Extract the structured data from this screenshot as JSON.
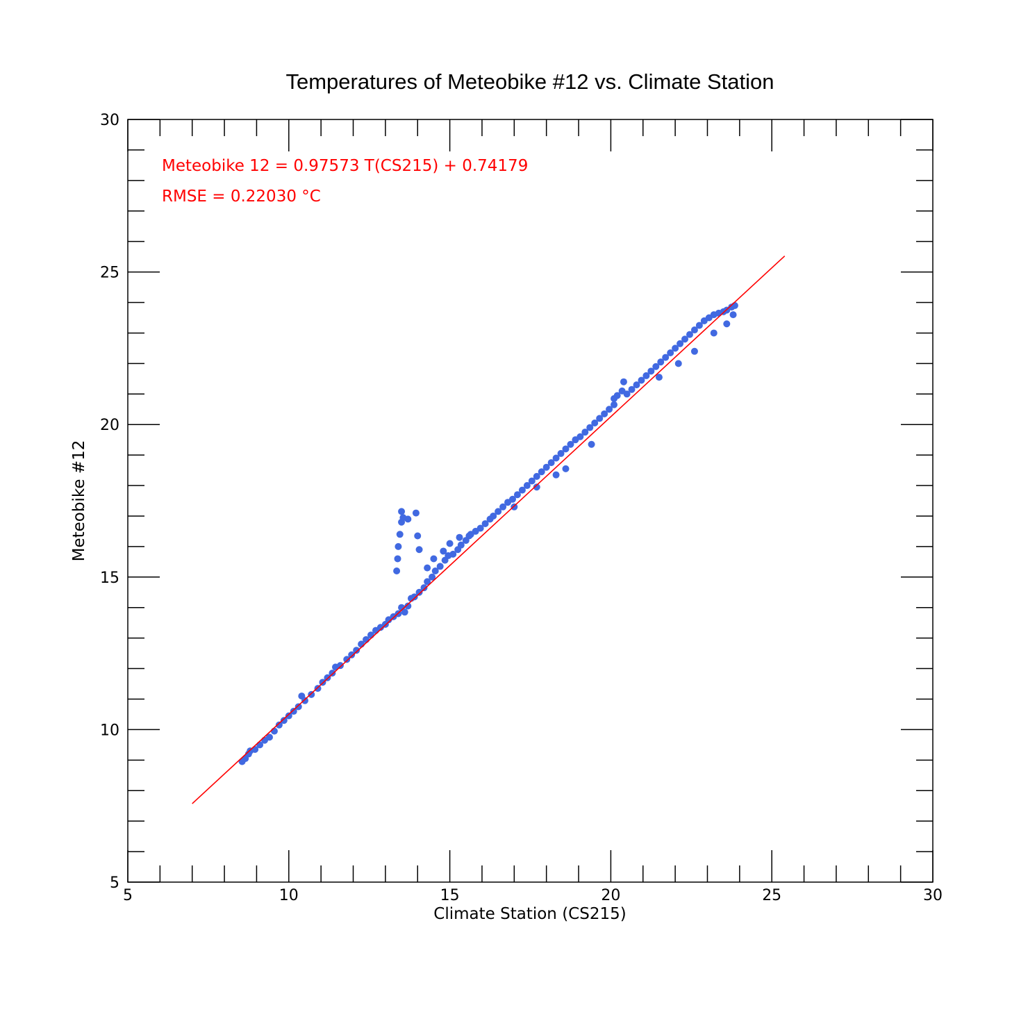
{
  "chart_data": {
    "type": "scatter",
    "title": "Temperatures of Meteobike #12 vs. Climate Station",
    "xlabel": "Climate Station (CS215)",
    "ylabel": "Meteobike #12",
    "xlim": [
      5,
      30
    ],
    "ylim": [
      5,
      30
    ],
    "xticks": [
      5,
      10,
      15,
      20,
      25,
      30
    ],
    "yticks": [
      5,
      10,
      15,
      20,
      25,
      30
    ],
    "xtick_labels": [
      "5",
      "10",
      "15",
      "20",
      "25",
      "30"
    ],
    "ytick_labels": [
      "5",
      "10",
      "15",
      "20",
      "25",
      "30"
    ],
    "minor_tick_step": 1,
    "grid": false,
    "annotations": [
      "Meteobike 12 = 0.97573 T(CS215) + 0.74179",
      "RMSE = 0.22030 °C"
    ],
    "series": [
      {
        "kind": "scatter",
        "color": "#4169e1",
        "points": [
          [
            8.55,
            8.95
          ],
          [
            8.65,
            9.05
          ],
          [
            8.75,
            9.2
          ],
          [
            8.8,
            9.3
          ],
          [
            8.95,
            9.35
          ],
          [
            9.1,
            9.5
          ],
          [
            9.25,
            9.65
          ],
          [
            9.4,
            9.75
          ],
          [
            9.55,
            9.95
          ],
          [
            9.7,
            10.15
          ],
          [
            9.85,
            10.3
          ],
          [
            10.0,
            10.45
          ],
          [
            10.15,
            10.6
          ],
          [
            10.3,
            10.75
          ],
          [
            10.4,
            11.1
          ],
          [
            10.5,
            10.95
          ],
          [
            10.7,
            11.15
          ],
          [
            10.9,
            11.35
          ],
          [
            11.05,
            11.55
          ],
          [
            11.2,
            11.7
          ],
          [
            11.35,
            11.85
          ],
          [
            11.45,
            12.05
          ],
          [
            11.6,
            12.1
          ],
          [
            11.8,
            12.3
          ],
          [
            11.95,
            12.45
          ],
          [
            12.1,
            12.6
          ],
          [
            12.25,
            12.8
          ],
          [
            12.4,
            12.95
          ],
          [
            12.55,
            13.1
          ],
          [
            12.7,
            13.25
          ],
          [
            12.85,
            13.35
          ],
          [
            13.0,
            13.45
          ],
          [
            13.1,
            13.6
          ],
          [
            13.25,
            13.7
          ],
          [
            13.4,
            13.8
          ],
          [
            13.5,
            14.0
          ],
          [
            13.6,
            13.85
          ],
          [
            13.7,
            14.05
          ],
          [
            13.8,
            14.3
          ],
          [
            13.9,
            14.35
          ],
          [
            14.05,
            14.5
          ],
          [
            14.2,
            14.65
          ],
          [
            14.3,
            14.85
          ],
          [
            14.45,
            15.0
          ],
          [
            14.55,
            15.2
          ],
          [
            14.7,
            15.35
          ],
          [
            14.85,
            15.55
          ],
          [
            14.95,
            15.7
          ],
          [
            15.1,
            15.75
          ],
          [
            15.25,
            15.9
          ],
          [
            15.35,
            16.05
          ],
          [
            15.5,
            16.2
          ],
          [
            15.65,
            16.4
          ],
          [
            15.8,
            16.5
          ],
          [
            15.95,
            16.6
          ],
          [
            16.1,
            16.75
          ],
          [
            16.25,
            16.9
          ],
          [
            16.35,
            17.0
          ],
          [
            16.5,
            17.15
          ],
          [
            16.65,
            17.3
          ],
          [
            16.8,
            17.45
          ],
          [
            16.95,
            17.55
          ],
          [
            17.1,
            17.7
          ],
          [
            17.25,
            17.85
          ],
          [
            17.4,
            18.0
          ],
          [
            17.55,
            18.15
          ],
          [
            17.7,
            18.3
          ],
          [
            17.85,
            18.45
          ],
          [
            18.0,
            18.6
          ],
          [
            18.15,
            18.75
          ],
          [
            18.3,
            18.9
          ],
          [
            18.45,
            19.05
          ],
          [
            18.6,
            19.2
          ],
          [
            18.75,
            19.35
          ],
          [
            18.9,
            19.5
          ],
          [
            19.05,
            19.6
          ],
          [
            19.2,
            19.75
          ],
          [
            19.35,
            19.9
          ],
          [
            19.5,
            20.05
          ],
          [
            19.65,
            20.2
          ],
          [
            19.8,
            20.35
          ],
          [
            19.95,
            20.5
          ],
          [
            20.1,
            20.65
          ],
          [
            20.2,
            20.95
          ],
          [
            20.35,
            21.1
          ],
          [
            20.5,
            21.0
          ],
          [
            20.65,
            21.15
          ],
          [
            20.8,
            21.3
          ],
          [
            20.95,
            21.45
          ],
          [
            21.1,
            21.6
          ],
          [
            21.25,
            21.75
          ],
          [
            21.4,
            21.9
          ],
          [
            21.55,
            22.05
          ],
          [
            21.7,
            22.2
          ],
          [
            21.85,
            22.35
          ],
          [
            22.0,
            22.5
          ],
          [
            22.15,
            22.65
          ],
          [
            22.3,
            22.8
          ],
          [
            22.45,
            22.95
          ],
          [
            22.6,
            23.1
          ],
          [
            22.75,
            23.25
          ],
          [
            22.9,
            23.4
          ],
          [
            23.05,
            23.5
          ],
          [
            23.2,
            23.6
          ],
          [
            23.35,
            23.65
          ],
          [
            23.5,
            23.7
          ],
          [
            23.6,
            23.75
          ],
          [
            23.75,
            23.85
          ],
          [
            23.85,
            23.9
          ],
          [
            13.35,
            15.2
          ],
          [
            13.38,
            15.6
          ],
          [
            13.4,
            16.0
          ],
          [
            13.45,
            16.4
          ],
          [
            13.5,
            16.8
          ],
          [
            13.5,
            17.15
          ],
          [
            13.55,
            16.95
          ],
          [
            13.7,
            16.9
          ],
          [
            13.95,
            17.1
          ],
          [
            14.0,
            16.35
          ],
          [
            14.05,
            15.9
          ],
          [
            14.3,
            15.3
          ],
          [
            14.5,
            15.6
          ],
          [
            14.8,
            15.85
          ],
          [
            15.0,
            16.1
          ],
          [
            15.3,
            16.3
          ],
          [
            15.6,
            16.35
          ],
          [
            17.0,
            17.3
          ],
          [
            17.7,
            17.95
          ],
          [
            18.3,
            18.35
          ],
          [
            18.6,
            18.55
          ],
          [
            19.4,
            19.35
          ],
          [
            20.1,
            20.85
          ],
          [
            20.4,
            21.4
          ],
          [
            21.5,
            21.55
          ],
          [
            22.1,
            22.0
          ],
          [
            22.6,
            22.4
          ],
          [
            23.2,
            23.0
          ],
          [
            23.6,
            23.3
          ],
          [
            23.8,
            23.6
          ]
        ]
      },
      {
        "kind": "line",
        "color": "#ff0000",
        "slope": 0.97573,
        "intercept": 0.74179,
        "x_range": [
          7.0,
          25.4
        ]
      }
    ]
  }
}
